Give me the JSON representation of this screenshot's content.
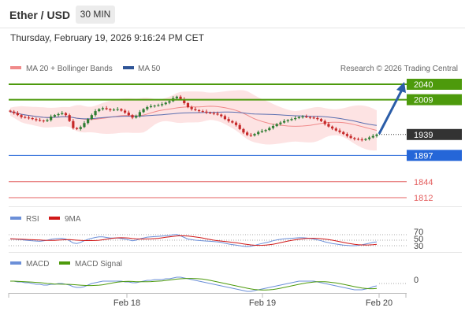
{
  "header": {
    "title": "Ether / USD",
    "timeframe": "30 MIN",
    "datetime": "Thursday, February 19, 2026 9:16:24 PM CET"
  },
  "legend": {
    "ma20": {
      "label": "MA 20 + Bollinger Bands",
      "color": "#f08a8a"
    },
    "ma50": {
      "label": "MA 50",
      "color": "#2f5597"
    },
    "credit": "Research © 2026 Trading Central"
  },
  "chart_data": [
    {
      "type": "candlestick",
      "title": "Ether / USD",
      "x_ticks": [
        "Feb 18",
        "Feb 19",
        "Feb 20"
      ],
      "price_levels": [
        {
          "value": "2040",
          "role": "resistance",
          "color": "#4d9a0c"
        },
        {
          "value": "2009",
          "role": "resistance",
          "color": "#4d9a0c"
        },
        {
          "value": "1939",
          "role": "last price",
          "color": "#333333"
        },
        {
          "value": "1897",
          "role": "support",
          "color": "#2566d8"
        },
        {
          "value": "1844",
          "role": "support",
          "color": "#e46060"
        },
        {
          "value": "1812",
          "role": "support",
          "color": "#e46060"
        }
      ],
      "close_series": [
        1985,
        1982,
        1978,
        1974,
        1973,
        1972,
        1970,
        1968,
        1967,
        1966,
        1968,
        1975,
        1978,
        1980,
        1982,
        1978,
        1966,
        1952,
        1950,
        1954,
        1962,
        1970,
        1978,
        1986,
        1990,
        1992,
        1990,
        1988,
        1989,
        1990,
        1987,
        1983,
        1978,
        1973,
        1976,
        1984,
        1990,
        1994,
        1996,
        1997,
        1998,
        2000,
        2003,
        2006,
        2012,
        2015,
        2010,
        2002,
        1994,
        1990,
        1988,
        1986,
        1985,
        1983,
        1982,
        1981,
        1979,
        1976,
        1970,
        1966,
        1963,
        1958,
        1950,
        1943,
        1938,
        1937,
        1940,
        1944,
        1946,
        1948,
        1952,
        1956,
        1960,
        1963,
        1966,
        1968,
        1970,
        1972,
        1974,
        1975,
        1974,
        1973,
        1972,
        1970,
        1966,
        1960,
        1955,
        1951,
        1947,
        1944,
        1940,
        1936,
        1932,
        1930,
        1929,
        1928,
        1930,
        1933,
        1936,
        1939
      ],
      "ma20_band_color": "#fde3e3",
      "projection": {
        "from": 1939,
        "to": 2040,
        "color": "#2b5da8"
      }
    },
    {
      "type": "line",
      "title": "RSI",
      "series": [
        {
          "name": "RSI",
          "color": "#6b8fd8"
        },
        {
          "name": "9MA",
          "color": "#d01818"
        }
      ],
      "y_ticks": [
        "70",
        "50",
        "30"
      ],
      "rsi_values": [
        55,
        54,
        53,
        52,
        50,
        49,
        48,
        47,
        46,
        48,
        50,
        53,
        55,
        56,
        57,
        54,
        48,
        40,
        38,
        42,
        48,
        53,
        57,
        60,
        62,
        62,
        60,
        58,
        58,
        58,
        56,
        54,
        51,
        48,
        50,
        55,
        58,
        61,
        62,
        63,
        64,
        65,
        66,
        67,
        70,
        71,
        66,
        60,
        54,
        52,
        50,
        49,
        48,
        47,
        46,
        45,
        44,
        42,
        39,
        36,
        34,
        32,
        30,
        28,
        27,
        28,
        31,
        35,
        38,
        41,
        44,
        48,
        51,
        53,
        55,
        56,
        57,
        58,
        59,
        59,
        58,
        56,
        54,
        51,
        48,
        44,
        41,
        38,
        36,
        34,
        32,
        31,
        30,
        30,
        31,
        33,
        36,
        39,
        42,
        44
      ]
    },
    {
      "type": "line",
      "title": "MACD",
      "series": [
        {
          "name": "MACD",
          "color": "#6b8fd8"
        },
        {
          "name": "MACD Signal",
          "color": "#4d9a0c"
        }
      ],
      "y_ticks": [
        "0"
      ],
      "macd_values": [
        3,
        3,
        2,
        2,
        1,
        1,
        0,
        -1,
        -1,
        -2,
        -2,
        -1,
        -1,
        0,
        0,
        -1,
        -2,
        -4,
        -5,
        -5,
        -4,
        -2,
        0,
        1,
        2,
        3,
        3,
        3,
        3,
        3,
        3,
        2,
        2,
        1,
        1,
        2,
        3,
        4,
        4,
        5,
        5,
        5,
        6,
        6,
        7,
        8,
        8,
        7,
        6,
        5,
        4,
        3,
        2,
        1,
        0,
        -1,
        -2,
        -3,
        -4,
        -5,
        -6,
        -7,
        -8,
        -9,
        -10,
        -10,
        -9,
        -8,
        -7,
        -6,
        -5,
        -4,
        -3,
        -2,
        -1,
        0,
        1,
        2,
        3,
        3,
        3,
        3,
        3,
        2,
        1,
        0,
        -1,
        -2,
        -3,
        -4,
        -5,
        -6,
        -7,
        -8,
        -8,
        -8,
        -7,
        -6,
        -4,
        -3
      ]
    }
  ]
}
